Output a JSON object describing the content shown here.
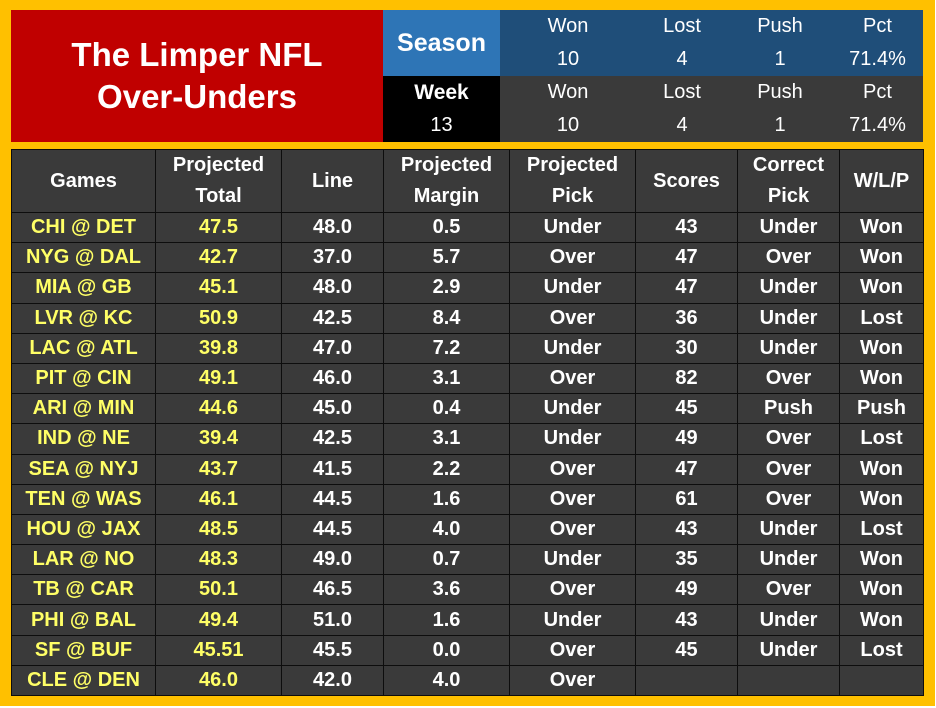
{
  "title": {
    "line1": "The Limper NFL",
    "line2": "Over-Unders"
  },
  "season": {
    "label": "Season",
    "won_label": "Won",
    "won": "10",
    "lost_label": "Lost",
    "lost": "4",
    "push_label": "Push",
    "push": "1",
    "pct_label": "Pct",
    "pct": "71.4%"
  },
  "week": {
    "label": "Week",
    "number": "13",
    "won_label": "Won",
    "won": "10",
    "lost_label": "Lost",
    "lost": "4",
    "push_label": "Push",
    "push": "1",
    "pct_label": "Pct",
    "pct": "71.4%"
  },
  "table": {
    "headers": [
      {
        "l1": "Games",
        "l2": ""
      },
      {
        "l1": "Projected",
        "l2": "Total"
      },
      {
        "l1": "Line",
        "l2": ""
      },
      {
        "l1": "Projected",
        "l2": "Margin"
      },
      {
        "l1": "Projected",
        "l2": "Pick"
      },
      {
        "l1": "Scores",
        "l2": ""
      },
      {
        "l1": "Correct",
        "l2": "Pick"
      },
      {
        "l1": "W/L/P",
        "l2": ""
      }
    ],
    "rows": [
      [
        "CHI @ DET",
        "47.5",
        "48.0",
        "0.5",
        "Under",
        "43",
        "Under",
        "Won"
      ],
      [
        "NYG @ DAL",
        "42.7",
        "37.0",
        "5.7",
        "Over",
        "47",
        "Over",
        "Won"
      ],
      [
        "MIA @ GB",
        "45.1",
        "48.0",
        "2.9",
        "Under",
        "47",
        "Under",
        "Won"
      ],
      [
        "LVR @ KC",
        "50.9",
        "42.5",
        "8.4",
        "Over",
        "36",
        "Under",
        "Lost"
      ],
      [
        "LAC @ ATL",
        "39.8",
        "47.0",
        "7.2",
        "Under",
        "30",
        "Under",
        "Won"
      ],
      [
        "PIT @ CIN",
        "49.1",
        "46.0",
        "3.1",
        "Over",
        "82",
        "Over",
        "Won"
      ],
      [
        "ARI @ MIN",
        "44.6",
        "45.0",
        "0.4",
        "Under",
        "45",
        "Push",
        "Push"
      ],
      [
        "IND @ NE",
        "39.4",
        "42.5",
        "3.1",
        "Under",
        "49",
        "Over",
        "Lost"
      ],
      [
        "SEA @ NYJ",
        "43.7",
        "41.5",
        "2.2",
        "Over",
        "47",
        "Over",
        "Won"
      ],
      [
        "TEN @ WAS",
        "46.1",
        "44.5",
        "1.6",
        "Over",
        "61",
        "Over",
        "Won"
      ],
      [
        "HOU @ JAX",
        "48.5",
        "44.5",
        "4.0",
        "Over",
        "43",
        "Under",
        "Lost"
      ],
      [
        "LAR @ NO",
        "48.3",
        "49.0",
        "0.7",
        "Under",
        "35",
        "Under",
        "Won"
      ],
      [
        "TB @ CAR",
        "50.1",
        "46.5",
        "3.6",
        "Over",
        "49",
        "Over",
        "Won"
      ],
      [
        "PHI @ BAL",
        "49.4",
        "51.0",
        "1.6",
        "Under",
        "43",
        "Under",
        "Won"
      ],
      [
        "SF @ BUF",
        "45.51",
        "45.5",
        "0.0",
        "Over",
        "45",
        "Under",
        "Lost"
      ],
      [
        "CLE @ DEN",
        "46.0",
        "42.0",
        "4.0",
        "Over",
        "",
        "",
        ""
      ]
    ]
  },
  "colors": {
    "frame": "#ffc000",
    "title_bg": "#c00000",
    "season_label_bg": "#2e75b6",
    "season_stats_bg": "#1f4e79",
    "week_label_bg": "#000000",
    "table_bg": "#3a3a3a",
    "highlight_text": "#ffff66"
  }
}
